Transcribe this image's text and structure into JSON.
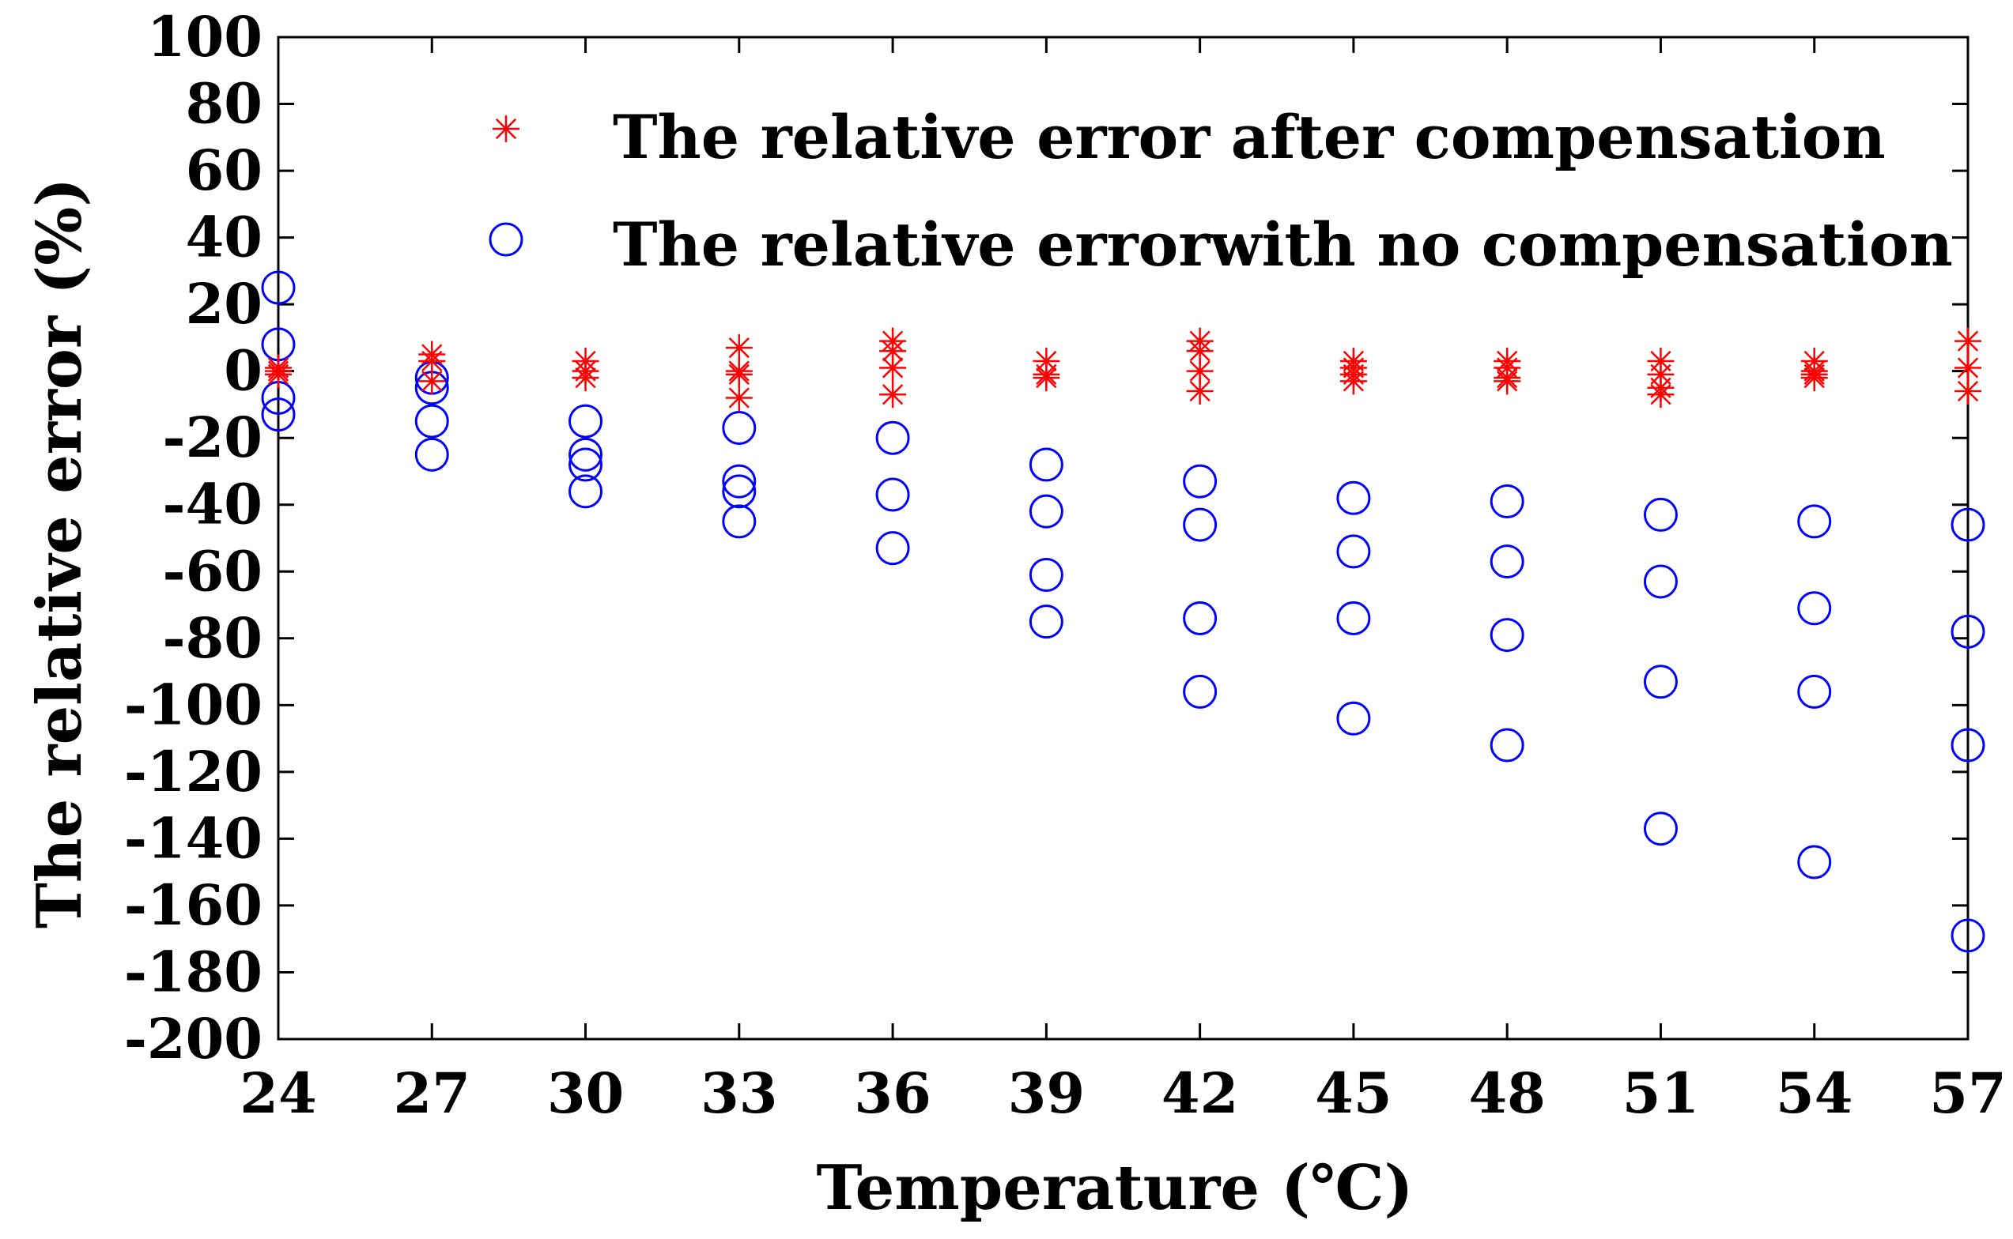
{
  "chart_data": {
    "type": "scatter",
    "xlabel": "Temperature (℃)",
    "ylabel": "The relative error (%)",
    "xlim": [
      24,
      57
    ],
    "ylim": [
      -200,
      100
    ],
    "grid": false,
    "legend_position": "top-right",
    "x_ticks": [
      "24",
      "27",
      "30",
      "33",
      "36",
      "39",
      "42",
      "45",
      "48",
      "51",
      "54",
      "57"
    ],
    "y_ticks": [
      "100",
      "80",
      "60",
      "40",
      "20",
      "0",
      "-20",
      "-40",
      "-60",
      "-80",
      "-100",
      "-120",
      "-140",
      "-160",
      "-180",
      "-200"
    ],
    "series": [
      {
        "name": "The relative error after compensation",
        "marker": "asterisk",
        "color": "#ff0000",
        "points": [
          {
            "x": 24,
            "y": 1
          },
          {
            "x": 24,
            "y": 0
          },
          {
            "x": 24,
            "y": -1
          },
          {
            "x": 27,
            "y": 5
          },
          {
            "x": 27,
            "y": 3
          },
          {
            "x": 27,
            "y": -3
          },
          {
            "x": 30,
            "y": 3
          },
          {
            "x": 30,
            "y": 0
          },
          {
            "x": 30,
            "y": -2
          },
          {
            "x": 33,
            "y": 7
          },
          {
            "x": 33,
            "y": 0
          },
          {
            "x": 33,
            "y": -1
          },
          {
            "x": 33,
            "y": -8
          },
          {
            "x": 36,
            "y": 9
          },
          {
            "x": 36,
            "y": 6
          },
          {
            "x": 36,
            "y": 1
          },
          {
            "x": 36,
            "y": -7
          },
          {
            "x": 39,
            "y": 3
          },
          {
            "x": 39,
            "y": -1
          },
          {
            "x": 39,
            "y": -2
          },
          {
            "x": 42,
            "y": 9
          },
          {
            "x": 42,
            "y": 6
          },
          {
            "x": 42,
            "y": 0
          },
          {
            "x": 42,
            "y": -6
          },
          {
            "x": 45,
            "y": 3
          },
          {
            "x": 45,
            "y": 1
          },
          {
            "x": 45,
            "y": -1
          },
          {
            "x": 45,
            "y": -3
          },
          {
            "x": 48,
            "y": 3
          },
          {
            "x": 48,
            "y": 1
          },
          {
            "x": 48,
            "y": -2
          },
          {
            "x": 48,
            "y": -3
          },
          {
            "x": 51,
            "y": 3
          },
          {
            "x": 51,
            "y": -1
          },
          {
            "x": 51,
            "y": -5
          },
          {
            "x": 51,
            "y": -7
          },
          {
            "x": 54,
            "y": 3
          },
          {
            "x": 54,
            "y": 0
          },
          {
            "x": 54,
            "y": -1
          },
          {
            "x": 54,
            "y": -2
          },
          {
            "x": 57,
            "y": 9
          },
          {
            "x": 57,
            "y": 1
          },
          {
            "x": 57,
            "y": -6
          }
        ]
      },
      {
        "name": "The relative errorwith no compensation",
        "marker": "circle",
        "color": "#0000ff",
        "points": [
          {
            "x": 24,
            "y": 25
          },
          {
            "x": 24,
            "y": 8
          },
          {
            "x": 24,
            "y": -8
          },
          {
            "x": 24,
            "y": -13
          },
          {
            "x": 27,
            "y": -2
          },
          {
            "x": 27,
            "y": -5
          },
          {
            "x": 27,
            "y": -15
          },
          {
            "x": 27,
            "y": -25
          },
          {
            "x": 30,
            "y": -15
          },
          {
            "x": 30,
            "y": -25
          },
          {
            "x": 30,
            "y": -28
          },
          {
            "x": 30,
            "y": -36
          },
          {
            "x": 33,
            "y": -17
          },
          {
            "x": 33,
            "y": -33
          },
          {
            "x": 33,
            "y": -36
          },
          {
            "x": 33,
            "y": -45
          },
          {
            "x": 36,
            "y": -20
          },
          {
            "x": 36,
            "y": -37
          },
          {
            "x": 36,
            "y": -53
          },
          {
            "x": 39,
            "y": -28
          },
          {
            "x": 39,
            "y": -42
          },
          {
            "x": 39,
            "y": -61
          },
          {
            "x": 39,
            "y": -75
          },
          {
            "x": 42,
            "y": -33
          },
          {
            "x": 42,
            "y": -46
          },
          {
            "x": 42,
            "y": -74
          },
          {
            "x": 42,
            "y": -96
          },
          {
            "x": 45,
            "y": -38
          },
          {
            "x": 45,
            "y": -54
          },
          {
            "x": 45,
            "y": -74
          },
          {
            "x": 45,
            "y": -104
          },
          {
            "x": 48,
            "y": -39
          },
          {
            "x": 48,
            "y": -57
          },
          {
            "x": 48,
            "y": -79
          },
          {
            "x": 48,
            "y": -112
          },
          {
            "x": 51,
            "y": -43
          },
          {
            "x": 51,
            "y": -63
          },
          {
            "x": 51,
            "y": -93
          },
          {
            "x": 51,
            "y": -137
          },
          {
            "x": 54,
            "y": -45
          },
          {
            "x": 54,
            "y": -71
          },
          {
            "x": 54,
            "y": -96
          },
          {
            "x": 54,
            "y": -147
          },
          {
            "x": 57,
            "y": -46
          },
          {
            "x": 57,
            "y": -78
          },
          {
            "x": 57,
            "y": -112
          },
          {
            "x": 57,
            "y": -169
          }
        ]
      }
    ]
  }
}
